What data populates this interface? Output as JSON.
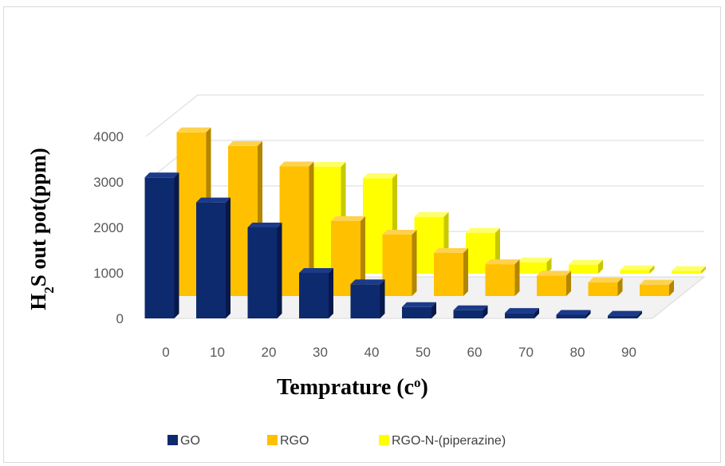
{
  "chart_data": {
    "type": "bar",
    "subtype": "3d-clustered-depth",
    "categories": [
      "0",
      "10",
      "20",
      "30",
      "40",
      "50",
      "60",
      "70",
      "80",
      "90"
    ],
    "series": [
      {
        "name": "GO",
        "values": [
          3100,
          2550,
          2000,
          1000,
          750,
          250,
          180,
          120,
          80,
          60
        ],
        "color": "#0d2a6e",
        "side": "#07184a",
        "top": "#1b3a8a"
      },
      {
        "name": "RGO",
        "values": [
          3600,
          3300,
          2850,
          1650,
          1350,
          950,
          700,
          450,
          300,
          250
        ],
        "color": "#ffc000",
        "side": "#b38600",
        "top": "#ffd24d"
      },
      {
        "name": "RGO-N-(piperazine)",
        "values": [
          null,
          null,
          2350,
          2100,
          1250,
          900,
          250,
          200,
          80,
          60
        ],
        "color": "#ffff00",
        "side": "#c8c800",
        "top": "#ffff66"
      }
    ],
    "yticks": [
      "0",
      "1000",
      "2000",
      "3000",
      "4000"
    ],
    "ylim": [
      0,
      4000
    ],
    "xlabel": "Temprature (c",
    "xlabel_sup": "o",
    "xlabel_end": ")",
    "ylabel": "H",
    "ylabel_sub": "2",
    "ylabel_end": "S out pot(ppm)",
    "legend_position": "bottom",
    "grid": true,
    "grid_color": "#d9d9d9"
  }
}
